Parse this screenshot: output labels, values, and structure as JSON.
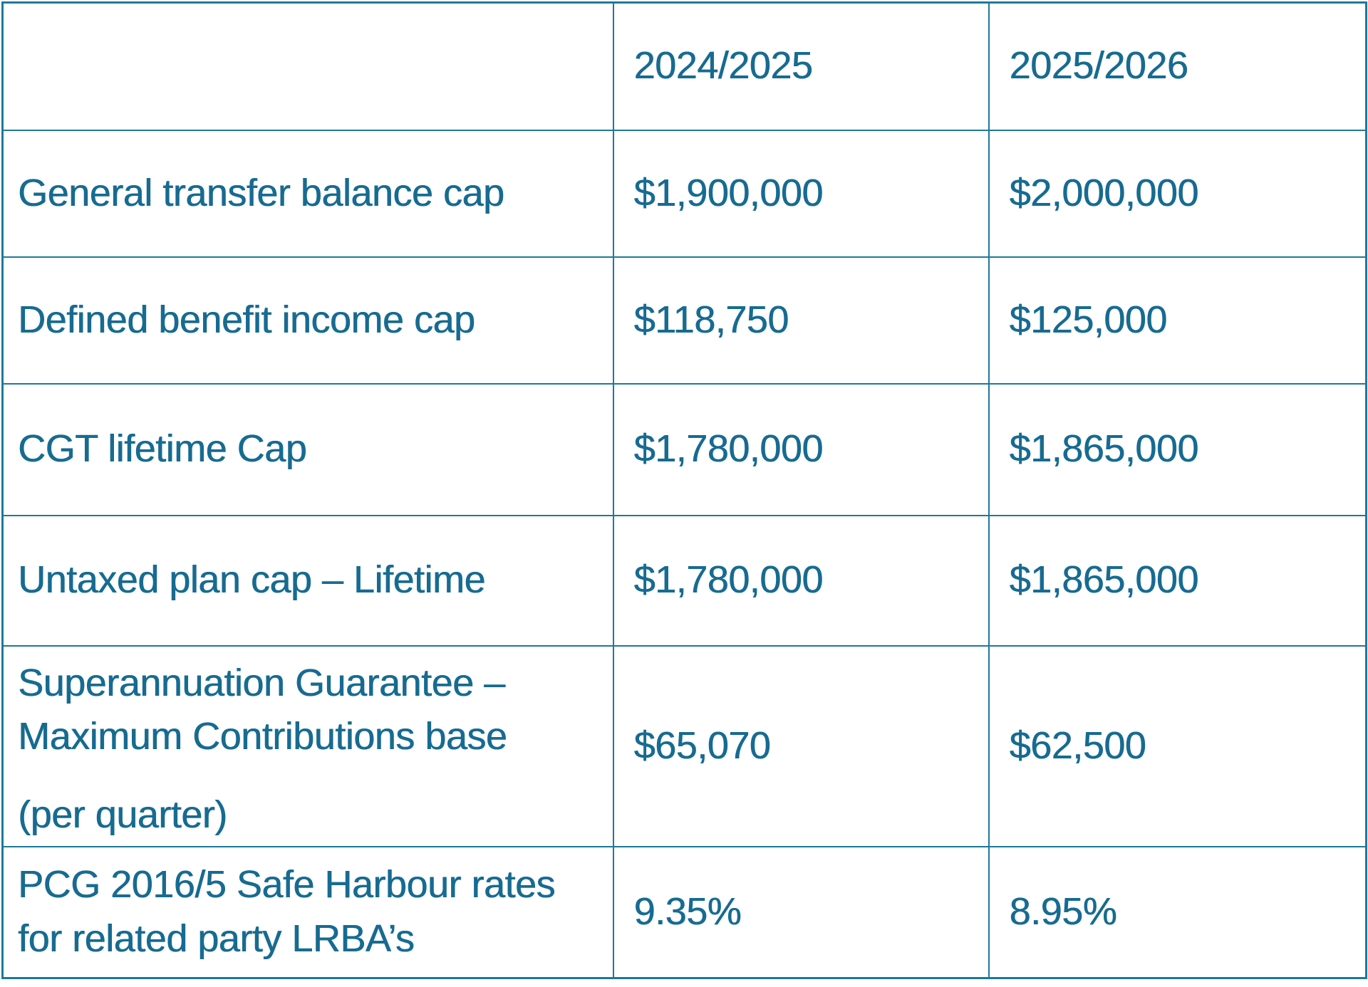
{
  "accent": {
    "text_color": "#176B91",
    "border_color": "#1F7899",
    "background_color": "#FFFFFF"
  },
  "table": {
    "header": {
      "label_col": "",
      "year1": "2024/2025",
      "year2": "2025/2026"
    },
    "rows": [
      {
        "label": "General transfer balance cap",
        "value_2024_2025": "$1,900,000",
        "value_2025_2026": "$2,000,000"
      },
      {
        "label": "Defined benefit income cap",
        "value_2024_2025": "$118,750",
        "value_2025_2026": "$125,000"
      },
      {
        "label": "CGT lifetime Cap",
        "value_2024_2025": "$1,780,000",
        "value_2025_2026": "$1,865,000"
      },
      {
        "label": "Untaxed plan cap – Lifetime",
        "value_2024_2025": "$1,780,000",
        "value_2025_2026": "$1,865,000"
      },
      {
        "label_part1": "Superannuation Guarantee – Maximum Contributions base",
        "label_part2": "(per quarter)",
        "value_2024_2025": "$65,070",
        "value_2025_2026": "$62,500"
      },
      {
        "label": "PCG 2016/5 Safe Harbour rates for related party LRBA’s",
        "value_2024_2025": "9.35%",
        "value_2025_2026": "8.95%"
      }
    ]
  }
}
